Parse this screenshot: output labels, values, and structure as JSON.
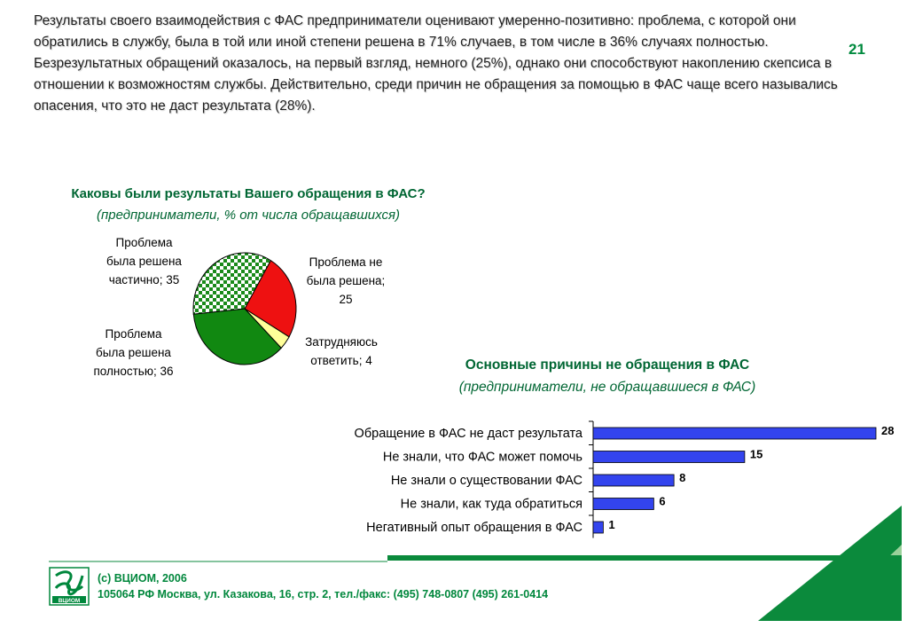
{
  "page_number": "21",
  "intro": [
    "Результаты своего взаимодействия с ФАС предприниматели оценивают умеренно-позитивно: проблема, с которой они обратились в службу, была в той или иной степени решена в 71% случаев, в том числе в 36% случаях полностью.",
    "Безрезультатных обращений оказалось, на первый взгляд, немного (25%), однако они способствуют накоплению скепсиса в отношении к возможностям службы. Действительно, среди причин не обращения за помощью в ФАС чаще всего назывались опасения, что это не даст результата (28%)."
  ],
  "pie_title": {
    "main": "Каковы были результаты Вашего обращения в ФАС?",
    "sub": "(предприниматели, % от числа обращавшихся)"
  },
  "bar_title": {
    "main": "Основные причины не обращения в ФАС",
    "sub": "(предприниматели, не обращавшиеся в ФАС)"
  },
  "footer": {
    "line1": "(с) ВЦИОМ, 2006",
    "line2": "105064 РФ Москва, ул. Казакова, 16, стр. 2, тел./факс: (495) 748-0807 (495) 261-0414",
    "logo_text": "ВЦИОМ"
  },
  "colors": {
    "accent_green": "#008a3e",
    "title_green": "#006633",
    "bar_blue": "#3344ee",
    "pie_checked": "#1a8a1a",
    "pie_red": "#ee1111",
    "pie_yellow": "#ffff99",
    "pie_green": "#118811"
  },
  "chart_data": [
    {
      "type": "pie",
      "slices": [
        {
          "label": "Проблема не была решена; 25",
          "value": 25,
          "color": "#ee1111"
        },
        {
          "label": "Затрудняюсь ответить; 4",
          "value": 4,
          "color": "#ffff99"
        },
        {
          "label": "Проблема была решена полностью; 36",
          "value": 36,
          "color": "#118811"
        },
        {
          "label": "Проблема была решена частично; 35",
          "value": 35,
          "color": "checkered-green"
        }
      ],
      "label_lines": [
        [
          "Проблема не",
          "была решена;",
          "25"
        ],
        [
          "Затрудняюсь",
          "ответить; 4"
        ],
        [
          "Проблема",
          "была решена",
          "полностью; 36"
        ],
        [
          "Проблема",
          "была решена",
          "частично; 35"
        ]
      ]
    },
    {
      "type": "bar",
      "orientation": "horizontal",
      "categories": [
        "Обращение в ФАС не даст результата",
        "Не знали, что ФАС может помочь",
        "Не знали о существовании ФАС",
        "Не знали, как туда обратиться",
        "Негативный опыт обращения в ФАС"
      ],
      "values": [
        28,
        15,
        8,
        6,
        1
      ],
      "value_labels": [
        "28",
        "15",
        "8",
        "6",
        "1"
      ],
      "xlim": [
        0,
        28
      ],
      "color": "#3344ee"
    }
  ]
}
